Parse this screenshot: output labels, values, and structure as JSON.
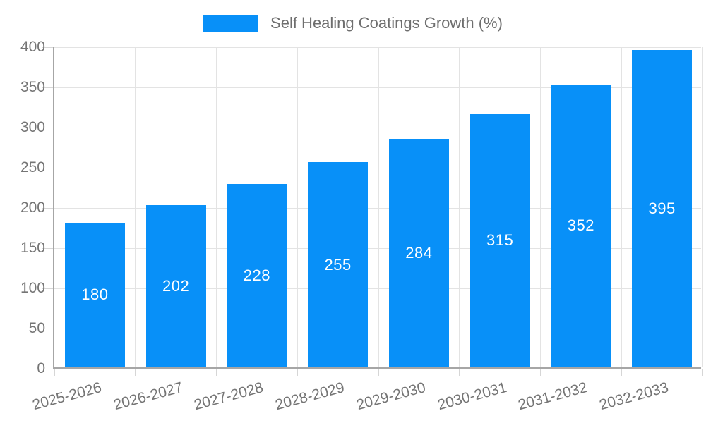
{
  "chart_data": {
    "type": "bar",
    "title": "Self Healing Coatings Growth (%)",
    "categories": [
      "2025-2026",
      "2026-2027",
      "2027-2028",
      "2028-2029",
      "2029-2030",
      "2030-2031",
      "2031-2032",
      "2032-2033"
    ],
    "values": [
      180,
      202,
      228,
      255,
      284,
      315,
      352,
      395
    ],
    "series": [
      {
        "name": "Self Healing Coatings Growth (%)",
        "values": [
          180,
          202,
          228,
          255,
          284,
          315,
          352,
          395
        ]
      }
    ],
    "xlabel": "",
    "ylabel": "",
    "ylim": [
      0,
      400
    ],
    "y_ticks": [
      0,
      50,
      100,
      150,
      200,
      250,
      300,
      350,
      400
    ],
    "grid": true,
    "legend_position": "top",
    "value_labels": "inside-center",
    "colors": {
      "bar": "#0890f8",
      "bar_value_text": "#ffffff",
      "axis_line": "#a6a6a6",
      "gridline": "#e3e3e3",
      "tick": "#d6d6d6",
      "tick_label": "#757575",
      "legend_text": "#6e6e6e",
      "background": "#ffffff"
    }
  }
}
